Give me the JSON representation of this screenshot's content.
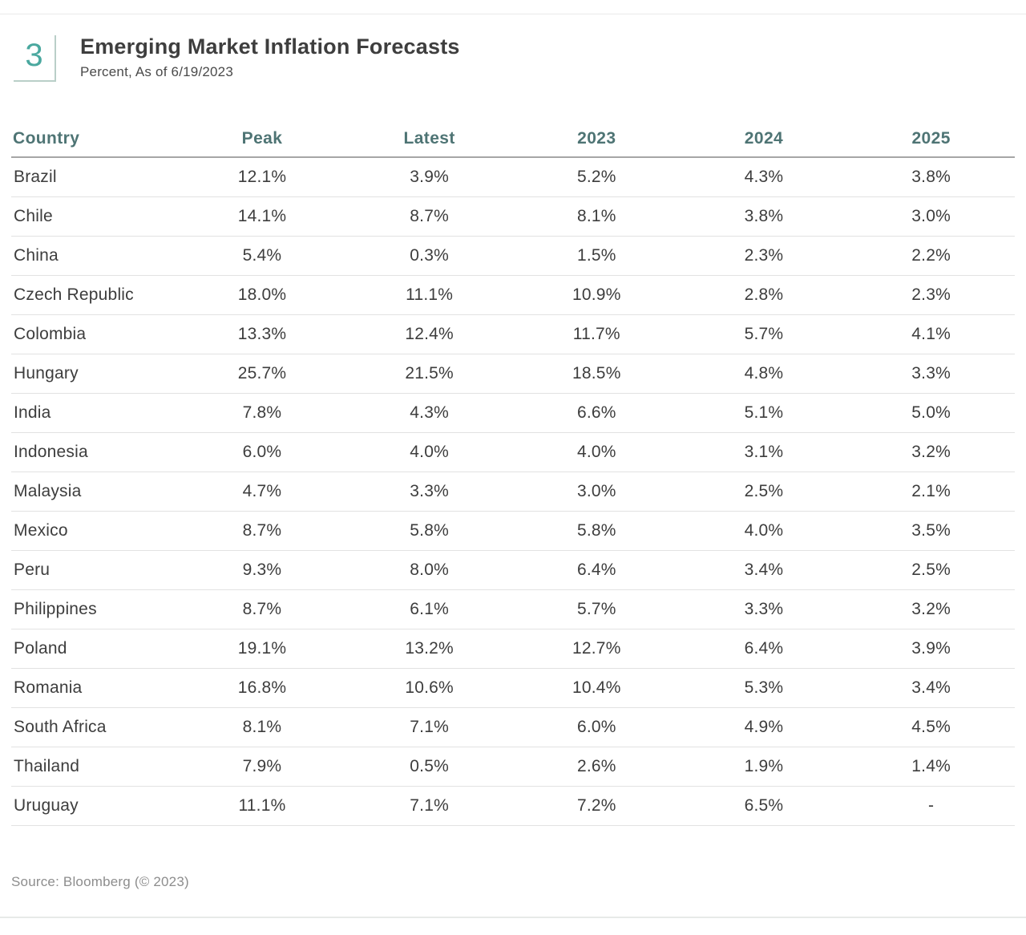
{
  "header": {
    "exhibit_number": "3"
  },
  "chart_data": {
    "type": "table",
    "title": "Emerging Market Inflation Forecasts",
    "subtitle": "Percent, As of 6/19/2023",
    "columns": [
      "Country",
      "Peak",
      "Latest",
      "2023",
      "2024",
      "2025"
    ],
    "rows": [
      [
        "Brazil",
        "12.1%",
        "3.9%",
        "5.2%",
        "4.3%",
        "3.8%"
      ],
      [
        "Chile",
        "14.1%",
        "8.7%",
        "8.1%",
        "3.8%",
        "3.0%"
      ],
      [
        "China",
        "5.4%",
        "0.3%",
        "1.5%",
        "2.3%",
        "2.2%"
      ],
      [
        "Czech Republic",
        "18.0%",
        "11.1%",
        "10.9%",
        "2.8%",
        "2.3%"
      ],
      [
        "Colombia",
        "13.3%",
        "12.4%",
        "11.7%",
        "5.7%",
        "4.1%"
      ],
      [
        "Hungary",
        "25.7%",
        "21.5%",
        "18.5%",
        "4.8%",
        "3.3%"
      ],
      [
        "India",
        "7.8%",
        "4.3%",
        "6.6%",
        "5.1%",
        "5.0%"
      ],
      [
        "Indonesia",
        "6.0%",
        "4.0%",
        "4.0%",
        "3.1%",
        "3.2%"
      ],
      [
        "Malaysia",
        "4.7%",
        "3.3%",
        "3.0%",
        "2.5%",
        "2.1%"
      ],
      [
        "Mexico",
        "8.7%",
        "5.8%",
        "5.8%",
        "4.0%",
        "3.5%"
      ],
      [
        "Peru",
        "9.3%",
        "8.0%",
        "6.4%",
        "3.4%",
        "2.5%"
      ],
      [
        "Philippines",
        "8.7%",
        "6.1%",
        "5.7%",
        "3.3%",
        "3.2%"
      ],
      [
        "Poland",
        "19.1%",
        "13.2%",
        "12.7%",
        "6.4%",
        "3.9%"
      ],
      [
        "Romania",
        "16.8%",
        "10.6%",
        "10.4%",
        "5.3%",
        "3.4%"
      ],
      [
        "South Africa",
        "8.1%",
        "7.1%",
        "6.0%",
        "4.9%",
        "4.5%"
      ],
      [
        "Thailand",
        "7.9%",
        "0.5%",
        "2.6%",
        "1.9%",
        "1.4%"
      ],
      [
        "Uruguay",
        "11.1%",
        "7.1%",
        "7.2%",
        "6.5%",
        "-"
      ]
    ]
  },
  "footer": {
    "source": "Source: Bloomberg (© 2023)"
  },
  "colors": {
    "column_header_text": "#4e7474",
    "body_text": "#3d3d3d",
    "badge_number": "#4aa89f",
    "badge_border": "#b9cfc8",
    "row_divider": "#e2e2e2",
    "header_divider": "#a6a6a6"
  }
}
